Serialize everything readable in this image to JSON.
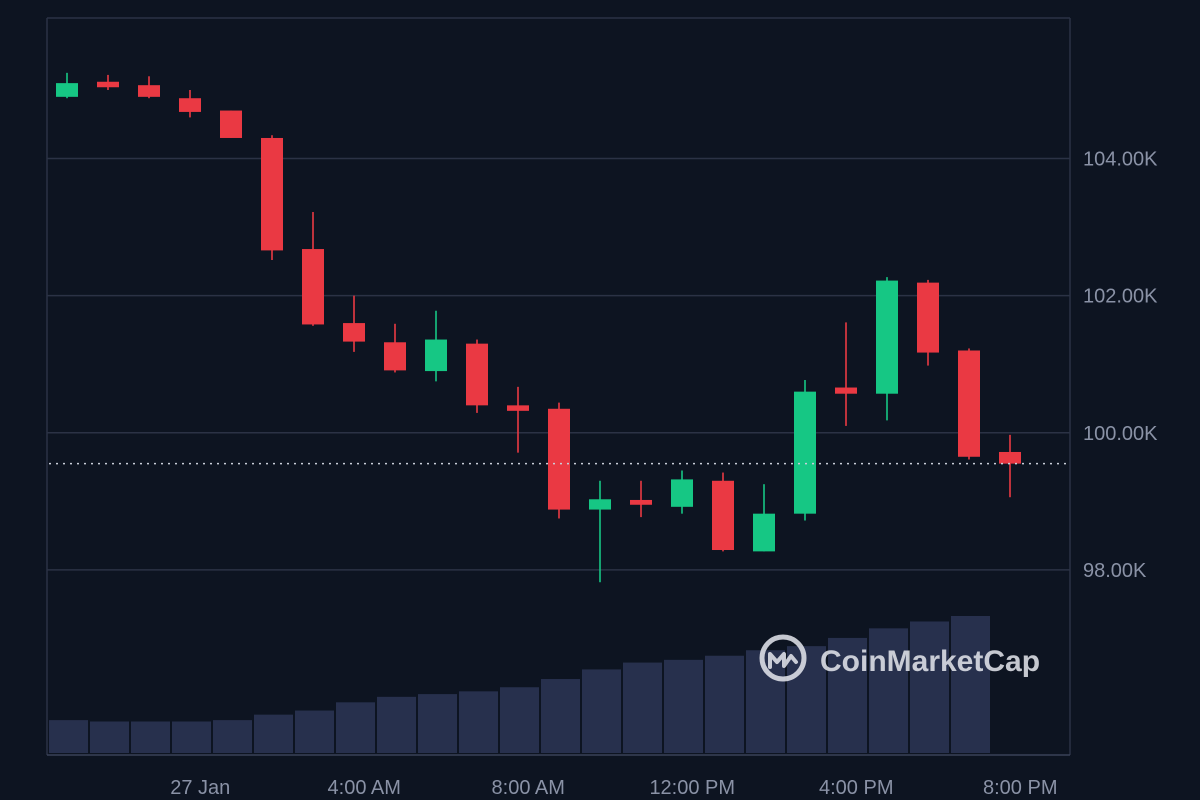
{
  "watermark": {
    "text": "CoinMarketCap"
  },
  "colors": {
    "background": "#0d1421",
    "up": "#16c784",
    "down": "#ea3943",
    "grid": "#2b3245",
    "volume": "#27304d",
    "axis_text": "#8a92a6",
    "price_line": "#c9ced9"
  },
  "chart_data": {
    "type": "candlestick",
    "title": "",
    "xlabel": "",
    "ylabel": "",
    "ylim": [
      95300,
      106050
    ],
    "y_ticks": [
      {
        "value": 98000,
        "label": "98.00K"
      },
      {
        "value": 100000,
        "label": "100.00K"
      },
      {
        "value": 102000,
        "label": "102.00K"
      },
      {
        "value": 104000,
        "label": "104.00K"
      }
    ],
    "x_ticks": [
      {
        "index": 3.25,
        "label": "27 Jan"
      },
      {
        "index": 7.25,
        "label": "4:00 AM"
      },
      {
        "index": 11.25,
        "label": "8:00 AM"
      },
      {
        "index": 15.25,
        "label": "12:00 PM"
      },
      {
        "index": 19.25,
        "label": "4:00 PM"
      },
      {
        "index": 23.25,
        "label": "8:00 PM"
      }
    ],
    "current_price": 99550,
    "grid": true,
    "candles": [
      {
        "open": 104900,
        "high": 105250,
        "low": 104880,
        "close": 105100
      },
      {
        "open": 105120,
        "high": 105220,
        "low": 105000,
        "close": 105040
      },
      {
        "open": 105070,
        "high": 105200,
        "low": 104880,
        "close": 104900
      },
      {
        "open": 104880,
        "high": 105000,
        "low": 104600,
        "close": 104680
      },
      {
        "open": 104700,
        "high": 104700,
        "low": 104300,
        "close": 104300
      },
      {
        "open": 104300,
        "high": 104340,
        "low": 102520,
        "close": 102660
      },
      {
        "open": 102680,
        "high": 103220,
        "low": 101560,
        "close": 101580
      },
      {
        "open": 101600,
        "high": 102000,
        "low": 101180,
        "close": 101330
      },
      {
        "open": 101320,
        "high": 101590,
        "low": 100880,
        "close": 100910
      },
      {
        "open": 100900,
        "high": 101780,
        "low": 100750,
        "close": 101360
      },
      {
        "open": 101300,
        "high": 101360,
        "low": 100290,
        "close": 100400
      },
      {
        "open": 100400,
        "high": 100670,
        "low": 99710,
        "close": 100320
      },
      {
        "open": 100350,
        "high": 100440,
        "low": 98750,
        "close": 98880
      },
      {
        "open": 98880,
        "high": 99300,
        "low": 97820,
        "close": 99030
      },
      {
        "open": 99020,
        "high": 99300,
        "low": 98770,
        "close": 98950
      },
      {
        "open": 98920,
        "high": 99450,
        "low": 98820,
        "close": 99320
      },
      {
        "open": 99300,
        "high": 99420,
        "low": 98270,
        "close": 98290
      },
      {
        "open": 98270,
        "high": 99250,
        "low": 98270,
        "close": 98820
      },
      {
        "open": 98820,
        "high": 100770,
        "low": 98720,
        "close": 100600
      },
      {
        "open": 100660,
        "high": 101610,
        "low": 100100,
        "close": 100570
      },
      {
        "open": 100570,
        "high": 102270,
        "low": 100180,
        "close": 102220
      },
      {
        "open": 102190,
        "high": 102230,
        "low": 100980,
        "close": 101170
      },
      {
        "open": 101200,
        "high": 101230,
        "low": 99610,
        "close": 99650
      },
      {
        "open": 99720,
        "high": 99970,
        "low": 99060,
        "close": 99550
      }
    ],
    "volume": [
      0.24,
      0.23,
      0.23,
      0.23,
      0.24,
      0.28,
      0.31,
      0.37,
      0.41,
      0.43,
      0.45,
      0.48,
      0.54,
      0.61,
      0.66,
      0.68,
      0.71,
      0.75,
      0.78,
      0.84,
      0.91,
      0.96,
      1.0
    ]
  }
}
